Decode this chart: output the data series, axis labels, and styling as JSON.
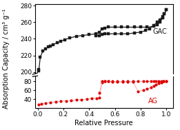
{
  "xlabel": "Relative Pressure",
  "ylabel": "Absorption Capacity / cm³ g⁻¹",
  "xlim": [
    -0.02,
    1.05
  ],
  "GAC_adsorption_x": [
    0.005,
    0.01,
    0.02,
    0.04,
    0.06,
    0.08,
    0.1,
    0.12,
    0.15,
    0.18,
    0.21,
    0.25,
    0.3,
    0.35,
    0.4,
    0.45,
    0.48,
    0.5,
    0.52,
    0.55,
    0.6,
    0.65,
    0.7,
    0.75,
    0.8,
    0.85,
    0.9,
    0.93,
    0.95,
    0.97,
    0.985,
    1.0
  ],
  "GAC_adsorption_y": [
    201,
    203,
    218,
    225,
    228,
    230,
    231,
    233,
    235,
    237,
    239,
    241,
    243,
    244,
    245,
    246,
    248,
    252,
    253,
    254,
    254,
    254,
    254,
    254,
    254,
    254,
    255,
    257,
    260,
    265,
    270,
    275
  ],
  "GAC_desorption_x": [
    1.0,
    0.985,
    0.97,
    0.95,
    0.93,
    0.9,
    0.87,
    0.84,
    0.8,
    0.75,
    0.7,
    0.65,
    0.6,
    0.55,
    0.52,
    0.5,
    0.48,
    0.45
  ],
  "GAC_desorption_y": [
    275,
    270,
    267,
    263,
    260,
    256,
    252,
    250,
    248,
    247,
    246,
    246,
    246,
    246,
    246,
    245,
    244,
    244
  ],
  "AG_adsorption_x": [
    0.01,
    0.03,
    0.06,
    0.1,
    0.14,
    0.18,
    0.22,
    0.26,
    0.3,
    0.34,
    0.38,
    0.42,
    0.46,
    0.48,
    0.5,
    0.52,
    0.55,
    0.58,
    0.62,
    0.66,
    0.7,
    0.74,
    0.78,
    0.82,
    0.85,
    0.88,
    0.9,
    0.92,
    0.94,
    0.96,
    0.98,
    1.0
  ],
  "AG_adsorption_y": [
    27,
    29,
    30,
    32,
    34,
    35,
    36,
    37,
    38,
    39,
    40,
    41,
    42,
    43,
    78,
    80,
    80,
    79,
    79,
    79,
    79,
    79,
    58,
    60,
    63,
    66,
    70,
    73,
    76,
    78,
    80,
    81
  ],
  "AG_desorption_x": [
    1.0,
    0.98,
    0.96,
    0.94,
    0.92,
    0.9,
    0.88,
    0.85,
    0.82,
    0.78,
    0.74,
    0.7,
    0.66,
    0.62,
    0.58,
    0.55,
    0.52,
    0.5,
    0.48
  ],
  "AG_desorption_y": [
    81,
    81,
    80,
    80,
    80,
    80,
    80,
    80,
    80,
    80,
    80,
    80,
    80,
    80,
    80,
    80,
    80,
    80,
    54
  ],
  "gac_color": "#1a1a1a",
  "ag_color": "#dd0000",
  "ag_line_color": "#ffaaaa",
  "gac_label": "GAC",
  "ag_label": "AG",
  "label_fontsize": 7,
  "tick_fontsize": 6.5
}
